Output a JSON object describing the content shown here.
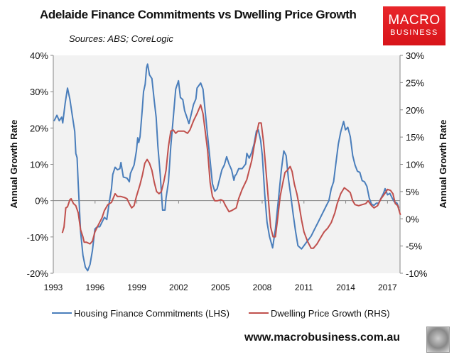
{
  "header": {
    "title": "Adelaide Finance Commitments vs Dwelling Price Growth",
    "sources": "Sources: ABS; CoreLogic"
  },
  "logo": {
    "line1": "MACRO",
    "line2": "BUSINESS"
  },
  "footer": {
    "website": "www.macrobusiness.com.au"
  },
  "colors": {
    "blue": "#4a7ebb",
    "red": "#c0504d",
    "plot_bg": "#f2f2f2",
    "axis": "#868686"
  },
  "chart_data": {
    "type": "line",
    "title": "Adelaide Finance Commitments vs Dwelling Price Growth",
    "ylabel": "Annual Growth Rate",
    "y2label": "Annual Growth Rate",
    "xlim": [
      1993,
      2017.9
    ],
    "ylim": [
      -20,
      40
    ],
    "y2lim": [
      -10,
      30
    ],
    "xticks": [
      1993,
      1996,
      1999,
      2002,
      2005,
      2008,
      2011,
      2014,
      2017
    ],
    "xtick_labels": [
      "1993",
      "1996",
      "1999",
      "2002",
      "2005",
      "2008",
      "2011",
      "2014",
      "2017"
    ],
    "yticks": [
      -20,
      -10,
      0,
      10,
      20,
      30,
      40
    ],
    "ytick_labels": [
      "-20%",
      "-10%",
      "0%",
      "10%",
      "20%",
      "30%",
      "40%"
    ],
    "y2ticks": [
      -10,
      -5,
      0,
      5,
      10,
      15,
      20,
      25,
      30
    ],
    "y2tick_labels": [
      "-10%",
      "-5%",
      "0%",
      "5%",
      "10%",
      "15%",
      "20%",
      "25%",
      "30%"
    ],
    "legend_position": "bottom",
    "series": [
      {
        "name": "Housing Finance Commitments (LHS)",
        "axis": "left",
        "color": "#4a7ebb",
        "points": [
          [
            1993.05,
            21.9
          ],
          [
            1993.26,
            23.5
          ],
          [
            1993.43,
            22
          ],
          [
            1993.6,
            23
          ],
          [
            1993.68,
            21.4
          ],
          [
            1993.85,
            26.8
          ],
          [
            1994.02,
            31
          ],
          [
            1994.19,
            28
          ],
          [
            1994.36,
            23.5
          ],
          [
            1994.54,
            19
          ],
          [
            1994.62,
            13
          ],
          [
            1994.71,
            11.8
          ],
          [
            1994.79,
            4.6
          ],
          [
            1994.96,
            -8.5
          ],
          [
            1995.13,
            -15
          ],
          [
            1995.3,
            -18.3
          ],
          [
            1995.47,
            -19.3
          ],
          [
            1995.64,
            -17.6
          ],
          [
            1995.81,
            -13.7
          ],
          [
            1995.99,
            -7.8
          ],
          [
            1996.16,
            -7.2
          ],
          [
            1996.33,
            -7.2
          ],
          [
            1996.5,
            -5.9
          ],
          [
            1996.67,
            -4.6
          ],
          [
            1996.84,
            -5.2
          ],
          [
            1997.01,
            -0.7
          ],
          [
            1997.18,
            3.3
          ],
          [
            1997.27,
            7.2
          ],
          [
            1997.44,
            9.2
          ],
          [
            1997.61,
            8.5
          ],
          [
            1997.78,
            8.8
          ],
          [
            1997.86,
            10.5
          ],
          [
            1998.03,
            6.5
          ],
          [
            1998.29,
            6.2
          ],
          [
            1998.46,
            5.2
          ],
          [
            1998.54,
            7.5
          ],
          [
            1998.8,
            9.8
          ],
          [
            1998.97,
            13.7
          ],
          [
            1999.06,
            17.3
          ],
          [
            1999.14,
            16
          ],
          [
            1999.23,
            17.6
          ],
          [
            1999.4,
            25.5
          ],
          [
            1999.48,
            30
          ],
          [
            1999.6,
            32
          ],
          [
            1999.7,
            36.6
          ],
          [
            1999.77,
            37.6
          ],
          [
            1999.91,
            34.6
          ],
          [
            2000.08,
            33.6
          ],
          [
            2000.25,
            27.5
          ],
          [
            2000.39,
            22.9
          ],
          [
            2000.51,
            15
          ],
          [
            2000.68,
            7.2
          ],
          [
            2000.85,
            -2.6
          ],
          [
            2001.02,
            -2.6
          ],
          [
            2001.1,
            0.7
          ],
          [
            2001.27,
            5.2
          ],
          [
            2001.44,
            15
          ],
          [
            2001.62,
            22.9
          ],
          [
            2001.79,
            30.7
          ],
          [
            2001.99,
            33
          ],
          [
            2002.13,
            28.4
          ],
          [
            2002.3,
            27.8
          ],
          [
            2002.43,
            24.8
          ],
          [
            2002.6,
            22.9
          ],
          [
            2002.74,
            21.2
          ],
          [
            2002.89,
            23.5
          ],
          [
            2003.07,
            26.5
          ],
          [
            2003.24,
            28
          ],
          [
            2003.32,
            31
          ],
          [
            2003.58,
            32.4
          ],
          [
            2003.75,
            30.7
          ],
          [
            2003.92,
            24.2
          ],
          [
            2004.09,
            17.6
          ],
          [
            2004.26,
            11.1
          ],
          [
            2004.43,
            4.6
          ],
          [
            2004.6,
            2.6
          ],
          [
            2004.77,
            3.3
          ],
          [
            2004.94,
            5.9
          ],
          [
            2005.11,
            8.5
          ],
          [
            2005.28,
            9.8
          ],
          [
            2005.45,
            12.1
          ],
          [
            2005.62,
            10.1
          ],
          [
            2005.8,
            8.5
          ],
          [
            2005.97,
            5.6
          ],
          [
            2006.05,
            6.9
          ],
          [
            2006.14,
            7.2
          ],
          [
            2006.31,
            8.8
          ],
          [
            2006.56,
            8.8
          ],
          [
            2006.82,
            10.1
          ],
          [
            2006.9,
            13
          ],
          [
            2007.07,
            11.7
          ],
          [
            2007.25,
            13.3
          ],
          [
            2007.42,
            15.6
          ],
          [
            2007.59,
            19.2
          ],
          [
            2007.72,
            19.5
          ],
          [
            2007.89,
            16.6
          ],
          [
            2008.01,
            12.4
          ],
          [
            2008.18,
            2
          ],
          [
            2008.35,
            -5.9
          ],
          [
            2008.52,
            -9.8
          ],
          [
            2008.75,
            -13
          ],
          [
            2008.95,
            -7.8
          ],
          [
            2009.21,
            2
          ],
          [
            2009.38,
            8.5
          ],
          [
            2009.55,
            13.7
          ],
          [
            2009.72,
            12.4
          ],
          [
            2009.89,
            5.9
          ],
          [
            2010.06,
            1.3
          ],
          [
            2010.23,
            -3.9
          ],
          [
            2010.4,
            -8.5
          ],
          [
            2010.57,
            -12.4
          ],
          [
            2010.83,
            -13.3
          ],
          [
            2011.0,
            -12.4
          ],
          [
            2011.25,
            -11.1
          ],
          [
            2011.51,
            -9.8
          ],
          [
            2011.77,
            -7.8
          ],
          [
            2012.02,
            -5.9
          ],
          [
            2012.28,
            -3.9
          ],
          [
            2012.45,
            -2.6
          ],
          [
            2012.62,
            -1.3
          ],
          [
            2012.79,
            0
          ],
          [
            2012.96,
            3.3
          ],
          [
            2013.13,
            5.2
          ],
          [
            2013.3,
            10.4
          ],
          [
            2013.47,
            15.6
          ],
          [
            2013.64,
            18.9
          ],
          [
            2013.85,
            21.8
          ],
          [
            2013.98,
            19.5
          ],
          [
            2014.15,
            20.2
          ],
          [
            2014.33,
            17.6
          ],
          [
            2014.5,
            12.4
          ],
          [
            2014.67,
            9.8
          ],
          [
            2014.84,
            8.1
          ],
          [
            2015.01,
            7.8
          ],
          [
            2015.18,
            5.5
          ],
          [
            2015.35,
            5.2
          ],
          [
            2015.52,
            3.9
          ],
          [
            2015.69,
            0.7
          ],
          [
            2015.86,
            -1
          ],
          [
            2016.03,
            -1.3
          ],
          [
            2016.2,
            -0.7
          ],
          [
            2016.37,
            -0.7
          ],
          [
            2016.54,
            0.7
          ],
          [
            2016.71,
            2
          ],
          [
            2016.83,
            3.3
          ],
          [
            2017.0,
            1.6
          ],
          [
            2017.17,
            2
          ],
          [
            2017.34,
            0.7
          ],
          [
            2017.48,
            -0.3
          ],
          [
            2017.68,
            -0.7
          ],
          [
            2017.82,
            -2
          ]
        ]
      },
      {
        "name": "Dwelling Price Growth (RHS)",
        "axis": "right",
        "color": "#c0504d",
        "points": [
          [
            1993.65,
            -2.6
          ],
          [
            1993.77,
            -1.5
          ],
          [
            1993.9,
            2
          ],
          [
            1994.02,
            2.2
          ],
          [
            1994.19,
            3.5
          ],
          [
            1994.28,
            3.7
          ],
          [
            1994.45,
            2.8
          ],
          [
            1994.62,
            2.4
          ],
          [
            1994.79,
            1.1
          ],
          [
            1994.96,
            -2
          ],
          [
            1995.13,
            -3.3
          ],
          [
            1995.22,
            -4.3
          ],
          [
            1995.39,
            -4.3
          ],
          [
            1995.64,
            -4.6
          ],
          [
            1995.81,
            -4.1
          ],
          [
            1995.99,
            -2.4
          ],
          [
            1996.24,
            -1.1
          ],
          [
            1996.5,
            0.2
          ],
          [
            1996.67,
            1.5
          ],
          [
            1996.92,
            2.6
          ],
          [
            1997.18,
            3
          ],
          [
            1997.44,
            4.6
          ],
          [
            1997.61,
            4.1
          ],
          [
            1997.86,
            4.1
          ],
          [
            1998.12,
            3.9
          ],
          [
            1998.29,
            3.7
          ],
          [
            1998.46,
            2.8
          ],
          [
            1998.63,
            2
          ],
          [
            1998.8,
            2.4
          ],
          [
            1998.97,
            4.1
          ],
          [
            1999.23,
            6.3
          ],
          [
            1999.4,
            8
          ],
          [
            1999.57,
            10.2
          ],
          [
            1999.74,
            10.9
          ],
          [
            1999.91,
            10.2
          ],
          [
            2000.08,
            8.9
          ],
          [
            2000.25,
            6.7
          ],
          [
            2000.42,
            5
          ],
          [
            2000.59,
            4.6
          ],
          [
            2000.76,
            5
          ],
          [
            2000.93,
            6.7
          ],
          [
            2001.1,
            8.9
          ],
          [
            2001.27,
            13.3
          ],
          [
            2001.44,
            16.1
          ],
          [
            2001.62,
            16.3
          ],
          [
            2001.79,
            15.7
          ],
          [
            2001.96,
            16.1
          ],
          [
            2002.13,
            16.1
          ],
          [
            2002.38,
            16.1
          ],
          [
            2002.64,
            15.7
          ],
          [
            2002.81,
            16.3
          ],
          [
            2003.07,
            18
          ],
          [
            2003.32,
            19.3
          ],
          [
            2003.58,
            20.9
          ],
          [
            2003.75,
            19.3
          ],
          [
            2003.92,
            15.9
          ],
          [
            2004.09,
            12.4
          ],
          [
            2004.26,
            6.7
          ],
          [
            2004.43,
            4.1
          ],
          [
            2004.6,
            3.3
          ],
          [
            2004.77,
            3.3
          ],
          [
            2005.03,
            3.5
          ],
          [
            2005.2,
            3.3
          ],
          [
            2005.37,
            2.4
          ],
          [
            2005.62,
            1.3
          ],
          [
            2005.8,
            1.5
          ],
          [
            2006.14,
            2
          ],
          [
            2006.31,
            3.7
          ],
          [
            2006.56,
            5.4
          ],
          [
            2006.9,
            7.2
          ],
          [
            2007.07,
            8.9
          ],
          [
            2007.25,
            10.7
          ],
          [
            2007.42,
            13.3
          ],
          [
            2007.59,
            15.4
          ],
          [
            2007.76,
            17.6
          ],
          [
            2007.93,
            17.6
          ],
          [
            2008.1,
            14.1
          ],
          [
            2008.27,
            8.9
          ],
          [
            2008.44,
            3.7
          ],
          [
            2008.61,
            -1.5
          ],
          [
            2008.78,
            -3.3
          ],
          [
            2008.95,
            -3.3
          ],
          [
            2009.12,
            0.2
          ],
          [
            2009.29,
            4.1
          ],
          [
            2009.46,
            6.3
          ],
          [
            2009.64,
            8.5
          ],
          [
            2009.81,
            8.9
          ],
          [
            2010.01,
            9.6
          ],
          [
            2010.15,
            8.7
          ],
          [
            2010.32,
            6.3
          ],
          [
            2010.49,
            4.6
          ],
          [
            2010.66,
            2.4
          ],
          [
            2010.83,
            -0.2
          ],
          [
            2011.0,
            -2.4
          ],
          [
            2011.25,
            -4.1
          ],
          [
            2011.51,
            -5.4
          ],
          [
            2011.68,
            -5.4
          ],
          [
            2011.94,
            -4.6
          ],
          [
            2012.19,
            -3.5
          ],
          [
            2012.45,
            -2.4
          ],
          [
            2012.71,
            -1.7
          ],
          [
            2012.96,
            -0.7
          ],
          [
            2013.22,
            1.1
          ],
          [
            2013.39,
            2.8
          ],
          [
            2013.64,
            4.6
          ],
          [
            2013.9,
            5.7
          ],
          [
            2014.15,
            5.2
          ],
          [
            2014.33,
            4.8
          ],
          [
            2014.5,
            3.3
          ],
          [
            2014.67,
            2.6
          ],
          [
            2014.93,
            2.4
          ],
          [
            2015.18,
            2.6
          ],
          [
            2015.44,
            2.8
          ],
          [
            2015.61,
            3.3
          ],
          [
            2015.86,
            2.4
          ],
          [
            2016.03,
            2
          ],
          [
            2016.29,
            2.4
          ],
          [
            2016.54,
            3.7
          ],
          [
            2016.8,
            4.6
          ],
          [
            2017.0,
            5.4
          ],
          [
            2017.22,
            5.2
          ],
          [
            2017.39,
            4.6
          ],
          [
            2017.56,
            2.8
          ],
          [
            2017.73,
            2.4
          ],
          [
            2017.93,
            0.7
          ]
        ]
      }
    ]
  }
}
